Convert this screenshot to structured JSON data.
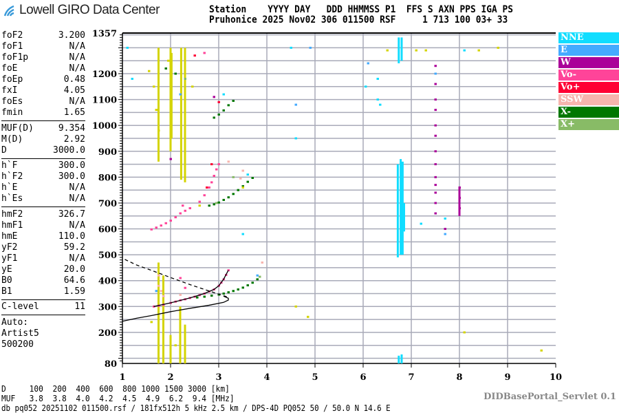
{
  "header": {
    "logo_text": "Lowell GIRO Data Center",
    "line1": "Station    YYYY DAY   DDD HHMMSS P1  FFS S AXN PPS IGA PS",
    "line2": "Pruhonice 2025 Nov02 306 011500 RSF     1 713 100 03+ 33"
  },
  "params": [
    [
      {
        "k": "foF2",
        "v": "3.200"
      },
      {
        "k": "foF1",
        "v": "N/A"
      },
      {
        "k": "foF1p",
        "v": "N/A"
      },
      {
        "k": "foE",
        "v": "N/A"
      },
      {
        "k": "foEp",
        "v": "0.48"
      },
      {
        "k": "fxI",
        "v": "4.05"
      },
      {
        "k": "foEs",
        "v": "N/A"
      },
      {
        "k": "fmin",
        "v": "1.65"
      }
    ],
    [
      {
        "k": "MUF(D)",
        "v": "9.354"
      },
      {
        "k": "M(D)",
        "v": "2.92"
      },
      {
        "k": "D",
        "v": "3000.0"
      }
    ],
    [
      {
        "k": "h`F",
        "v": "300.0"
      },
      {
        "k": "h`F2",
        "v": "300.0"
      },
      {
        "k": "h`E",
        "v": "N/A"
      },
      {
        "k": "h`Es",
        "v": "N/A"
      }
    ],
    [
      {
        "k": "hmF2",
        "v": "326.7"
      },
      {
        "k": "hmF1",
        "v": "N/A"
      },
      {
        "k": "hmE",
        "v": "110.0"
      },
      {
        "k": "yF2",
        "v": "59.2"
      },
      {
        "k": "yF1",
        "v": "N/A"
      },
      {
        "k": "yE",
        "v": "20.0"
      },
      {
        "k": "B0",
        "v": "64.6"
      },
      {
        "k": "B1",
        "v": "1.59"
      }
    ],
    [
      {
        "k": "C-level",
        "v": "11"
      }
    ]
  ],
  "auto": {
    "l1": "Auto:",
    "l2": "Artist5",
    "l3": "500200"
  },
  "bottom": {
    "d_line": "D     100  200  400  600  800 1000 1500 3000 [km]",
    "muf_line": "MUF   3.8  3.8  4.0  4.2  4.5  4.9  6.2  9.4 [MHz]",
    "info_line": "db pq052 20251102 011500.rsf / 181fx512h 5 kHz 2.5 km / DPS-4D PQ052 50 / 50.0 N 14.6 E",
    "servlet": "DIDBasePortal_Servlet 0.1"
  },
  "legend": [
    {
      "label": "NNE",
      "color": "#11ddff"
    },
    {
      "label": "E",
      "color": "#44aaff"
    },
    {
      "label": "W",
      "color": "#aa0099"
    },
    {
      "label": "Vo-",
      "color": "#ff4499"
    },
    {
      "label": "Vo+",
      "color": "#ff0033"
    },
    {
      "label": "SSW",
      "color": "#f7b5ae"
    },
    {
      "label": "X-",
      "color": "#007700"
    },
    {
      "label": "X+",
      "color": "#88bb66"
    }
  ],
  "chart_data": {
    "type": "scatter",
    "xlabel": "",
    "ylabel": "",
    "xlim": [
      1,
      10
    ],
    "ylim": [
      80,
      1357
    ],
    "x_ticks": [
      "1",
      "2",
      "3",
      "4",
      "5",
      "6",
      "7",
      "8",
      "9",
      "10"
    ],
    "y_ticks": [
      "1357",
      "1200",
      "1100",
      "1000",
      "900",
      "800",
      "700",
      "600",
      "500",
      "400",
      "300",
      "200",
      "80"
    ],
    "grid": true,
    "legend_position": "right",
    "noise_color": "#d4d400",
    "traces": [
      {
        "legend": "Vo-",
        "points": [
          [
            1.65,
            300
          ],
          [
            1.75,
            303
          ],
          [
            1.85,
            307
          ],
          [
            2.0,
            314
          ],
          [
            2.1,
            319
          ],
          [
            2.2,
            324
          ],
          [
            2.3,
            328
          ],
          [
            2.4,
            333
          ],
          [
            2.5,
            338
          ],
          [
            2.6,
            344
          ],
          [
            2.7,
            350
          ],
          [
            2.8,
            358
          ],
          [
            2.9,
            366
          ],
          [
            3.0,
            380
          ],
          [
            3.05,
            392
          ],
          [
            3.1,
            405
          ],
          [
            3.15,
            422
          ],
          [
            3.2,
            440
          ],
          [
            1.6,
            598
          ],
          [
            1.7,
            605
          ],
          [
            1.8,
            613
          ],
          [
            1.9,
            622
          ],
          [
            2.0,
            632
          ],
          [
            2.1,
            645
          ],
          [
            2.2,
            660
          ],
          [
            2.3,
            670
          ],
          [
            2.4,
            680
          ],
          [
            2.6,
            705
          ],
          [
            2.7,
            730
          ],
          [
            2.8,
            760
          ],
          [
            2.85,
            780
          ],
          [
            2.9,
            805
          ],
          [
            2.95,
            830
          ],
          [
            3.0,
            850
          ],
          [
            2.2,
            410
          ],
          [
            2.3,
            372
          ],
          [
            2.25,
            690
          ],
          [
            2.7,
            1280
          ]
        ]
      },
      {
        "legend": "Vo+",
        "points": [
          [
            2.85,
            850
          ],
          [
            2.75,
            760
          ],
          [
            3.0,
            1090
          ],
          [
            2.5,
            1270
          ]
        ]
      },
      {
        "legend": "X-",
        "points": [
          [
            2.55,
            335
          ],
          [
            2.7,
            338
          ],
          [
            2.85,
            342
          ],
          [
            3.0,
            346
          ],
          [
            3.1,
            350
          ],
          [
            3.2,
            355
          ],
          [
            3.3,
            360
          ],
          [
            3.4,
            366
          ],
          [
            3.5,
            373
          ],
          [
            3.6,
            382
          ],
          [
            3.7,
            392
          ],
          [
            3.8,
            405
          ],
          [
            2.8,
            690
          ],
          [
            2.9,
            695
          ],
          [
            3.0,
            702
          ],
          [
            3.1,
            712
          ],
          [
            3.2,
            722
          ],
          [
            3.3,
            735
          ],
          [
            3.4,
            750
          ],
          [
            3.5,
            765
          ],
          [
            3.6,
            782
          ],
          [
            3.7,
            797
          ],
          [
            2.9,
            1030
          ],
          [
            3.0,
            1042
          ],
          [
            3.1,
            1058
          ],
          [
            3.2,
            1078
          ],
          [
            3.3,
            1095
          ],
          [
            2.1,
            1200
          ],
          [
            1.9,
            1220
          ]
        ]
      },
      {
        "legend": "X+",
        "points": [
          [
            2.95,
            700
          ],
          [
            3.3,
            800
          ],
          [
            3.85,
            415
          ],
          [
            2.3,
            1180
          ]
        ]
      },
      {
        "legend": "SSW",
        "points": [
          [
            1.75,
            420
          ],
          [
            1.75,
            380
          ],
          [
            1.8,
            360
          ],
          [
            1.85,
            340
          ],
          [
            2.2,
            345
          ],
          [
            3.5,
            825
          ],
          [
            3.45,
            795
          ],
          [
            3.2,
            860
          ],
          [
            3.9,
            470
          ]
        ]
      },
      {
        "legend": "E",
        "points": [
          [
            1.7,
            360
          ],
          [
            2.2,
            1120
          ],
          [
            3.8,
            420
          ],
          [
            4.6,
            1080
          ],
          [
            6.1,
            1240
          ],
          [
            7.5,
            1200
          ],
          [
            7.7,
            580
          ],
          [
            4.9,
            1300
          ]
        ]
      },
      {
        "legend": "NNE",
        "points": [
          [
            3.5,
            580
          ],
          [
            3.1,
            1120
          ],
          [
            3.6,
            810
          ],
          [
            4.5,
            1300
          ],
          [
            4.6,
            950
          ],
          [
            6.3,
            1180
          ],
          [
            6.3,
            1100
          ],
          [
            6.35,
            1080
          ],
          [
            7.2,
            620
          ],
          [
            7.7,
            640
          ],
          [
            8.1,
            1290
          ],
          [
            1.2,
            1180
          ],
          [
            1.1,
            1300
          ],
          [
            6.05,
            1150
          ]
        ]
      },
      {
        "legend": "W",
        "points": [
          [
            7.5,
            1230
          ],
          [
            7.5,
            1160
          ],
          [
            7.5,
            1100
          ],
          [
            7.5,
            1060
          ],
          [
            7.5,
            1000
          ],
          [
            7.5,
            960
          ],
          [
            7.5,
            900
          ],
          [
            7.5,
            850
          ],
          [
            7.5,
            800
          ],
          [
            7.5,
            770
          ],
          [
            7.5,
            740
          ],
          [
            7.5,
            700
          ],
          [
            7.5,
            660
          ],
          [
            7.7,
            600
          ],
          [
            8.0,
            760
          ],
          [
            8.0,
            720
          ],
          [
            8.0,
            680
          ],
          [
            2.0,
            870
          ],
          [
            2.9,
            1110
          ]
        ]
      },
      {
        "legend": "noise",
        "points": [
          [
            1.55,
            1210
          ],
          [
            1.65,
            1150
          ],
          [
            1.7,
            1060
          ],
          [
            1.75,
            980
          ],
          [
            1.95,
            1250
          ],
          [
            2.45,
            1150
          ],
          [
            2.6,
            690
          ],
          [
            3.5,
            760
          ],
          [
            4.6,
            300
          ],
          [
            4.85,
            260
          ],
          [
            6.5,
            1290
          ],
          [
            7.1,
            1290
          ],
          [
            7.3,
            1290
          ],
          [
            8.4,
            1290
          ],
          [
            8.8,
            1300
          ],
          [
            8.1,
            200
          ],
          [
            9.7,
            130
          ],
          [
            2.1,
            150
          ],
          [
            1.6,
            240
          ]
        ]
      }
    ],
    "bars": [
      {
        "legend": "noise",
        "f": 1.75,
        "h": [
          860,
          1300
        ]
      },
      {
        "legend": "noise",
        "f": 2.0,
        "h": [
          900,
          1300
        ]
      },
      {
        "legend": "noise",
        "f": 2.02,
        "h": [
          950,
          1280
        ]
      },
      {
        "legend": "noise",
        "f": 2.22,
        "h": [
          790,
          1300
        ]
      },
      {
        "legend": "noise",
        "f": 2.3,
        "h": [
          780,
          1300
        ]
      },
      {
        "legend": "noise",
        "f": 1.75,
        "h": [
          80,
          470
        ]
      },
      {
        "legend": "noise",
        "f": 1.85,
        "h": [
          80,
          420
        ]
      },
      {
        "legend": "noise",
        "f": 2.2,
        "h": [
          80,
          300
        ]
      },
      {
        "legend": "noise",
        "f": 2.3,
        "h": [
          80,
          230
        ]
      },
      {
        "legend": "noise",
        "f": 2.0,
        "h": [
          80,
          190
        ]
      },
      {
        "legend": "NNE",
        "f": 6.72,
        "h": [
          490,
          850
        ]
      },
      {
        "legend": "NNE",
        "f": 6.78,
        "h": [
          500,
          870
        ]
      },
      {
        "legend": "NNE",
        "f": 6.82,
        "h": [
          500,
          860
        ]
      },
      {
        "legend": "NNE",
        "f": 6.85,
        "h": [
          590,
          700
        ]
      },
      {
        "legend": "NNE",
        "f": 6.74,
        "h": [
          1240,
          1340
        ]
      },
      {
        "legend": "NNE",
        "f": 6.8,
        "h": [
          1250,
          1340
        ]
      },
      {
        "legend": "NNE",
        "f": 6.74,
        "h": [
          80,
          110
        ]
      },
      {
        "legend": "NNE",
        "f": 6.8,
        "h": [
          80,
          115
        ]
      },
      {
        "legend": "W",
        "f": 8.0,
        "h": [
          650,
          760
        ]
      }
    ],
    "model_curves": [
      {
        "style": "solid",
        "points": [
          [
            1.0,
            243
          ],
          [
            1.3,
            255
          ],
          [
            1.6,
            265
          ],
          [
            2.0,
            280
          ],
          [
            2.4,
            293
          ],
          [
            2.8,
            305
          ],
          [
            3.1,
            316
          ],
          [
            3.2,
            325
          ],
          [
            3.2,
            332
          ],
          [
            3.1,
            340
          ]
        ]
      },
      {
        "style": "dashed",
        "points": [
          [
            1.05,
            482
          ],
          [
            1.3,
            460
          ],
          [
            1.6,
            440
          ],
          [
            2.0,
            412
          ],
          [
            2.4,
            385
          ],
          [
            2.8,
            360
          ],
          [
            3.1,
            342
          ],
          [
            3.2,
            335
          ]
        ]
      },
      {
        "style": "solid",
        "points": [
          [
            1.65,
            300
          ],
          [
            2.0,
            314
          ],
          [
            2.4,
            333
          ],
          [
            2.7,
            350
          ],
          [
            2.9,
            366
          ],
          [
            3.0,
            380
          ],
          [
            3.1,
            405
          ],
          [
            3.2,
            440
          ]
        ]
      }
    ]
  }
}
